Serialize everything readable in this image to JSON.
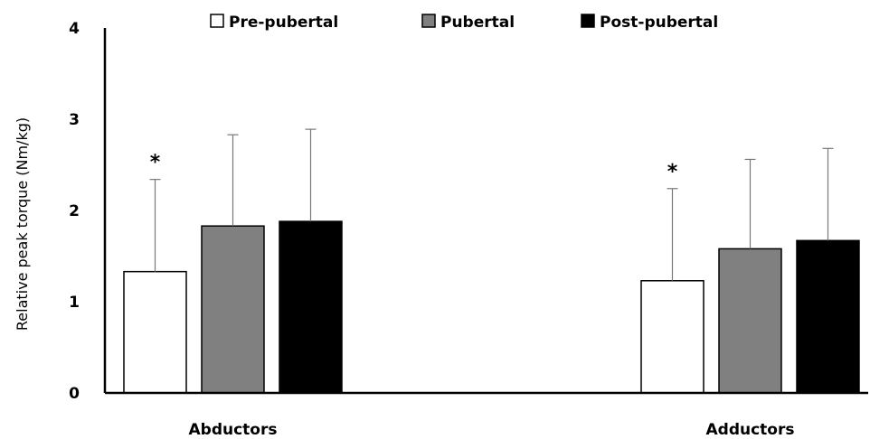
{
  "chart_data": {
    "type": "bar",
    "categories": [
      "Abductors",
      "Adductors"
    ],
    "series": [
      {
        "name": "Pre-pubertal",
        "values": [
          1.33,
          1.23
        ],
        "errors": [
          1.01,
          1.01
        ],
        "color": "#ffffff"
      },
      {
        "name": "Pubertal",
        "values": [
          1.83,
          1.58
        ],
        "errors": [
          1.0,
          0.98
        ],
        "color": "#808080"
      },
      {
        "name": "Post-pubertal",
        "values": [
          1.88,
          1.67
        ],
        "errors": [
          1.01,
          1.01
        ],
        "color": "#000000"
      }
    ],
    "title": "",
    "xlabel": "",
    "ylabel": "Relative peak torque (Nm/kg)",
    "ylim": [
      0,
      4
    ],
    "yticks": [
      "0",
      "1",
      "2",
      "3",
      "4"
    ],
    "legend_position": "top",
    "annotations": [
      {
        "text": "*",
        "category": "Abductors",
        "series": "Pre-pubertal"
      },
      {
        "text": "*",
        "category": "Adductors",
        "series": "Pre-pubertal"
      }
    ]
  }
}
